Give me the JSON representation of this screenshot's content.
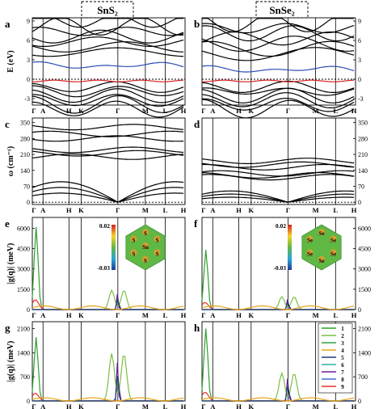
{
  "titles": [
    "SnS₂",
    "SnSe₂"
  ],
  "kpath": [
    "Γ",
    "A",
    "H",
    "K",
    "Γ",
    "M",
    "L",
    "H"
  ],
  "kpos": [
    0,
    0.07,
    0.24,
    0.32,
    0.56,
    0.74,
    0.87,
    0.99
  ],
  "ylabels": {
    "bands": "E (eV)",
    "phonons": "ω (cm⁻¹)",
    "coupling_e": "|g(q)| (meV)",
    "coupling_g": "|g(q)| (meV)"
  },
  "inset_e": {
    "max": "0.02",
    "min": "-0.03",
    "atoms": [
      "S",
      "S",
      "S",
      "Sn",
      "S",
      "S",
      "S"
    ]
  },
  "inset_f": {
    "max": "0.02",
    "min": "-0.03",
    "atoms": [
      "Se",
      "Se",
      "Se",
      "Se",
      "Se",
      "Se"
    ]
  },
  "legend": [
    "1",
    "2",
    "3",
    "4",
    "5",
    "6",
    "7",
    "8",
    "9"
  ],
  "colors": [
    "#2ca02c",
    "#7bc043",
    "#2e9e44",
    "#e8a317",
    "#1f3d7a",
    "#2bb0a8",
    "#6a1b9a",
    "#3b6bd6",
    "#e8312a"
  ],
  "chart_data": [
    {
      "panel": "a",
      "type": "line",
      "material": "SnS₂",
      "ylabel": "E (eV)",
      "ylim": [
        -4,
        9.5
      ],
      "yticks": [
        -3,
        0,
        3,
        6,
        9
      ],
      "highlight": {
        "conduction": "#2a4db5",
        "valence": "#d62020"
      }
    },
    {
      "panel": "b",
      "type": "line",
      "material": "SnSe₂",
      "ylabel": "",
      "ylim": [
        -4,
        9.5
      ],
      "yticks": [
        -3,
        0,
        3,
        6,
        9
      ],
      "highlight": {
        "conduction": "#2a4db5",
        "valence": "#d62020"
      }
    },
    {
      "panel": "c",
      "type": "line",
      "material": "SnS₂",
      "ylabel": "ω (cm⁻¹)",
      "ylim": [
        -10,
        370
      ],
      "yticks": [
        0,
        70,
        140,
        210,
        280,
        350
      ]
    },
    {
      "panel": "d",
      "type": "line",
      "material": "SnSe₂",
      "ylabel": "",
      "ylim": [
        -10,
        370
      ],
      "yticks": [
        0,
        70,
        140,
        210,
        280,
        350
      ]
    },
    {
      "panel": "e",
      "type": "line",
      "material": "SnS₂",
      "ylabel": "|g(q)| (meV)",
      "ylim": [
        0,
        6800
      ],
      "yticks": [
        0,
        1500,
        3000,
        4500,
        6000
      ]
    },
    {
      "panel": "f",
      "type": "line",
      "material": "SnSe₂",
      "ylabel": "",
      "ylim": [
        0,
        6800
      ],
      "yticks": [
        0,
        1500,
        3000,
        4500,
        6000
      ]
    },
    {
      "panel": "g",
      "type": "line",
      "material": "SnS₂",
      "ylabel": "|g(q)| (meV)",
      "ylim": [
        0,
        2300
      ],
      "yticks": [
        0,
        700,
        1400,
        2100
      ]
    },
    {
      "panel": "h",
      "type": "line",
      "material": "SnSe₂",
      "ylabel": "",
      "ylim": [
        0,
        2300
      ],
      "yticks": [
        0,
        700,
        1400,
        2100
      ]
    }
  ]
}
